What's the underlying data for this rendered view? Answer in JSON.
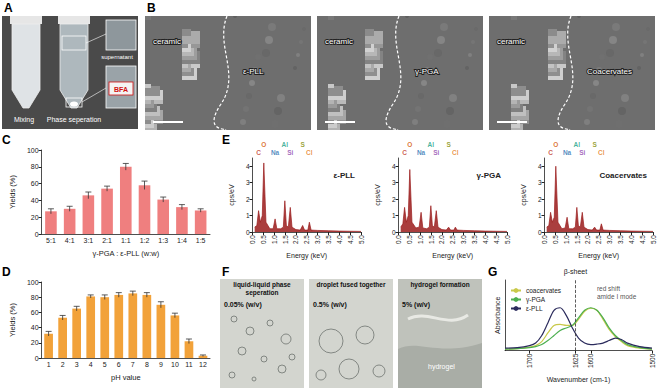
{
  "figures": [
    {
      "panel": "A",
      "captions": [
        "Mixing",
        "Phase seperation"
      ],
      "insets": [
        "supernatant",
        "BFA"
      ]
    },
    {
      "panel": "B",
      "images": [
        {
          "left": "ceramic",
          "right": "ε-PLL"
        },
        {
          "left": "ceramic",
          "right": "γ-PGA"
        },
        {
          "left": "ceramic",
          "right": "Coacervates"
        }
      ]
    },
    {
      "panel": "F",
      "images": [
        {
          "title": "liquid-liquid phase seperation",
          "label": "0.05% (w/v)"
        },
        {
          "title": "droplet fused together",
          "label": "0.5% (w/v)"
        },
        {
          "title": "hydrogel formation",
          "label": "5% (w/v)",
          "inner": "hydrogel"
        }
      ]
    }
  ],
  "chart_data": [
    {
      "panel": "C",
      "type": "bar",
      "categories": [
        "5:1",
        "4:1",
        "3:1",
        "2:1",
        "1:1",
        "1:2",
        "1:3",
        "1:4",
        "1:5"
      ],
      "values": [
        27,
        30,
        46,
        54,
        80,
        58,
        41,
        32,
        28
      ],
      "errors": [
        3,
        3,
        4,
        3,
        4,
        5,
        3,
        3,
        2
      ],
      "color": "#ef7f7f",
      "xlabel": "γ-PGA : ε-PLL (w:w)",
      "ylabel": "Yields (%)",
      "ylim": [
        0,
        100
      ],
      "yticks": [
        0,
        20,
        40,
        60,
        80,
        100
      ],
      "grid": false
    },
    {
      "panel": "D",
      "type": "bar",
      "categories": [
        "1",
        "2",
        "3",
        "4",
        "5",
        "6",
        "7",
        "8",
        "9",
        "10",
        "11",
        "12"
      ],
      "values": [
        32,
        53,
        65,
        81,
        80,
        83,
        85,
        83,
        70,
        56,
        22,
        3
      ],
      "errors": [
        3,
        3,
        3,
        2,
        3,
        3,
        3,
        3,
        4,
        3,
        3,
        1
      ],
      "color": "#f2a23a",
      "xlabel": "pH value",
      "ylabel": "Yields (%)",
      "ylim": [
        0,
        100
      ],
      "yticks": [
        0,
        20,
        40,
        60,
        80,
        100
      ],
      "grid": false
    },
    {
      "panel": "E",
      "type": "area",
      "title": "ε-PLL",
      "x": [
        0.1,
        0.2,
        0.28,
        0.36,
        0.45,
        0.52,
        0.62,
        0.8,
        0.95,
        1.04,
        1.12,
        1.3,
        1.42,
        1.49,
        1.56,
        1.65,
        1.74,
        1.82,
        2.0,
        2.2,
        2.31,
        2.4,
        2.55,
        2.62,
        2.7,
        3.0,
        3.5,
        4.0,
        4.5,
        5.0
      ],
      "values": [
        0.3,
        0.4,
        1.3,
        0.6,
        1.0,
        4.2,
        0.6,
        0.2,
        0.2,
        0.8,
        0.2,
        0.2,
        0.3,
        1.9,
        0.4,
        0.3,
        1.5,
        0.3,
        0.15,
        0.12,
        0.4,
        0.12,
        0.12,
        0.6,
        0.12,
        0.1,
        0.08,
        0.06,
        0.05,
        0.04
      ],
      "color": "#9b1c1c",
      "xlabel": "Energy (keV)",
      "ylabel": "cps/eV",
      "xlim": [
        0,
        5
      ],
      "xticks": [
        {
          "value": 0,
          "label": "0.0"
        },
        0.5,
        {
          "value": 1,
          "label": "1.0"
        },
        1.5,
        {
          "value": 2,
          "label": "2.0"
        },
        2.5,
        {
          "value": 3,
          "label": "3.0"
        },
        3.5,
        {
          "value": 4,
          "label": "4.0"
        },
        4.5,
        {
          "value": 5,
          "label": "5.0"
        }
      ],
      "ylim": [
        0,
        4.5
      ],
      "yticks": [
        0,
        1,
        2,
        3,
        4
      ],
      "annotations": [
        {
          "text": "C",
          "x": 0.28
        },
        {
          "text": "O",
          "x": 0.52
        },
        {
          "text": "Na",
          "x": 1.04
        },
        {
          "text": "Al",
          "x": 1.49
        },
        {
          "text": "Si",
          "x": 1.74
        },
        {
          "text": "S",
          "x": 2.31
        },
        {
          "text": "Cl",
          "x": 2.62
        }
      ],
      "grid": false
    },
    {
      "type": "area",
      "title": "γ-PGA",
      "x": [
        0.1,
        0.2,
        0.28,
        0.36,
        0.45,
        0.52,
        0.62,
        0.8,
        0.95,
        1.04,
        1.12,
        1.3,
        1.42,
        1.49,
        1.56,
        1.65,
        1.74,
        1.82,
        2.0,
        2.2,
        2.31,
        2.4,
        2.55,
        2.62,
        2.7,
        3.0,
        3.5,
        4.0,
        4.5,
        5.0
      ],
      "values": [
        0.3,
        0.5,
        1.5,
        0.6,
        1.0,
        3.8,
        0.6,
        0.25,
        0.3,
        1.2,
        0.25,
        0.2,
        0.3,
        1.6,
        0.4,
        0.3,
        1.3,
        0.3,
        0.15,
        0.12,
        0.3,
        0.12,
        0.12,
        0.3,
        0.12,
        0.1,
        0.08,
        0.06,
        0.05,
        0.04
      ],
      "color": "#9b1c1c",
      "xlabel": "Energy (keV)",
      "ylabel": "cps/eV",
      "xlim": [
        0,
        5
      ],
      "xticks": [
        {
          "value": 0,
          "label": "0.0"
        },
        0.5,
        {
          "value": 1,
          "label": "1.0"
        },
        1.5,
        {
          "value": 2,
          "label": "2.0"
        },
        2.5,
        {
          "value": 3,
          "label": "3.0"
        },
        3.5,
        {
          "value": 4,
          "label": "4.0"
        },
        4.5,
        {
          "value": 5,
          "label": "5.0"
        }
      ],
      "ylim": [
        0,
        4.5
      ],
      "yticks": [
        0,
        1,
        2,
        3,
        4
      ],
      "annotations": [
        {
          "text": "C",
          "x": 0.28
        },
        {
          "text": "O",
          "x": 0.52
        },
        {
          "text": "Na",
          "x": 1.04
        },
        {
          "text": "Al",
          "x": 1.49
        },
        {
          "text": "Si",
          "x": 1.74
        },
        {
          "text": "S",
          "x": 2.31
        },
        {
          "text": "Cl",
          "x": 2.62
        }
      ],
      "grid": false
    },
    {
      "type": "area",
      "title": "Coacervates",
      "x": [
        0.1,
        0.2,
        0.28,
        0.36,
        0.45,
        0.52,
        0.62,
        0.8,
        0.95,
        1.04,
        1.12,
        1.3,
        1.42,
        1.49,
        1.56,
        1.65,
        1.74,
        1.82,
        2.0,
        2.2,
        2.31,
        2.4,
        2.55,
        2.62,
        2.7,
        3.0,
        3.5,
        4.0,
        4.5,
        5.0
      ],
      "values": [
        0.3,
        0.4,
        1.2,
        0.6,
        0.9,
        4.0,
        0.6,
        0.2,
        0.25,
        0.9,
        0.2,
        0.2,
        0.3,
        1.5,
        0.4,
        0.3,
        1.2,
        0.3,
        0.15,
        0.12,
        0.3,
        0.12,
        0.12,
        0.5,
        0.12,
        0.1,
        0.08,
        0.06,
        0.05,
        0.04
      ],
      "color": "#9b1c1c",
      "xlabel": "Energy (keV)",
      "ylabel": "cps/eV",
      "xlim": [
        0,
        5
      ],
      "xticks": [
        {
          "value": 0,
          "label": "0.0"
        },
        0.5,
        {
          "value": 1,
          "label": "1.0"
        },
        1.5,
        {
          "value": 2,
          "label": "2.0"
        },
        2.5,
        {
          "value": 3,
          "label": "3.0"
        },
        3.5,
        {
          "value": 4,
          "label": "4.0"
        },
        4.5,
        {
          "value": 5,
          "label": "5.0"
        }
      ],
      "ylim": [
        0,
        4.5
      ],
      "yticks": [
        0,
        1,
        2,
        3,
        4
      ],
      "annotations": [
        {
          "text": "C",
          "x": 0.28
        },
        {
          "text": "O",
          "x": 0.52
        },
        {
          "text": "Na",
          "x": 1.04
        },
        {
          "text": "Al",
          "x": 1.49
        },
        {
          "text": "Si",
          "x": 1.74
        },
        {
          "text": "S",
          "x": 2.31
        },
        {
          "text": "Cl",
          "x": 2.62
        }
      ],
      "grid": false
    },
    {
      "panel": "G",
      "type": "line",
      "x": [
        1740,
        1720,
        1700,
        1690,
        1680,
        1670,
        1660,
        1650,
        1640,
        1630,
        1620,
        1610,
        1600,
        1590,
        1580,
        1570,
        1560,
        1550,
        1540,
        1520,
        1500
      ],
      "series": [
        {
          "name": "coacervates",
          "color": "#c9c94a",
          "values": [
            0.03,
            0.04,
            0.07,
            0.1,
            0.18,
            0.35,
            0.5,
            0.52,
            0.5,
            0.5,
            0.62,
            0.78,
            0.84,
            0.8,
            0.62,
            0.42,
            0.28,
            0.18,
            0.1,
            0.05,
            0.03
          ]
        },
        {
          "name": "γ-PGA",
          "color": "#4caf50",
          "values": [
            0.03,
            0.04,
            0.06,
            0.08,
            0.12,
            0.2,
            0.3,
            0.4,
            0.45,
            0.5,
            0.65,
            0.8,
            0.85,
            0.8,
            0.65,
            0.45,
            0.3,
            0.2,
            0.12,
            0.06,
            0.03
          ]
        },
        {
          "name": "ε-PLL",
          "color": "#2b2b5c",
          "values": [
            0.05,
            0.06,
            0.1,
            0.15,
            0.3,
            0.55,
            0.8,
            0.85,
            0.7,
            0.45,
            0.25,
            0.15,
            0.12,
            0.13,
            0.15,
            0.2,
            0.25,
            0.22,
            0.15,
            0.08,
            0.05
          ]
        }
      ],
      "xlabel": "Wavenumber (cm-1)",
      "ylabel": "Absorbance",
      "xlim": [
        1740,
        1500
      ],
      "xticks": [
        1700,
        1625,
        1600,
        1500
      ],
      "ylim": [
        0,
        1.4
      ],
      "tick_labels": "x",
      "legend": "upper left",
      "annotations": [
        {
          "text": "β-sheet",
          "x": 1625
        },
        {
          "text": "red shift",
          "x": 1590
        },
        {
          "text": "amide I mode",
          "x": 1590
        }
      ],
      "grid": false
    }
  ]
}
